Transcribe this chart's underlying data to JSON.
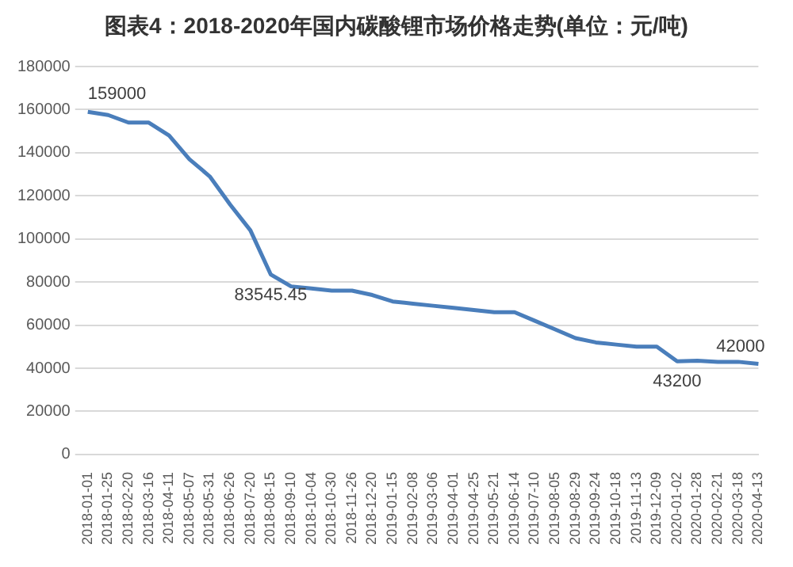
{
  "chart_data": {
    "type": "line",
    "title": "图表4：2018-2020年国内碳酸锂市场价格走势(单位：元/吨)",
    "categories": [
      "2018-01-01",
      "2018-01-25",
      "2018-02-20",
      "2018-03-16",
      "2018-04-11",
      "2018-05-07",
      "2018-05-31",
      "2018-06-26",
      "2018-07-20",
      "2018-08-15",
      "2018-09-10",
      "2018-10-04",
      "2018-10-30",
      "2018-11-26",
      "2018-12-20",
      "2019-01-15",
      "2019-02-08",
      "2019-03-06",
      "2019-04-01",
      "2019-04-25",
      "2019-05-21",
      "2019-06-14",
      "2019-07-10",
      "2019-08-05",
      "2019-08-29",
      "2019-09-24",
      "2019-10-18",
      "2019-11-13",
      "2019-12-09",
      "2020-01-02",
      "2020-01-28",
      "2020-02-21",
      "2020-03-18",
      "2020-04-13"
    ],
    "series": [
      {
        "color": "#4a7ebb",
        "values": [
          159000,
          157500,
          154000,
          154000,
          148000,
          137000,
          129000,
          116000,
          104000,
          83545.45,
          78000,
          77000,
          76000,
          76000,
          74000,
          71000,
          70000,
          69000,
          68000,
          67000,
          66000,
          66000,
          62000,
          58000,
          54000,
          52000,
          51000,
          50000,
          50000,
          43200,
          43500,
          43000,
          43000,
          42000
        ]
      }
    ],
    "ylim": [
      0,
      180000
    ],
    "yticks": [
      0,
      20000,
      40000,
      60000,
      80000,
      100000,
      120000,
      140000,
      160000,
      180000
    ],
    "grid": "y",
    "legend": false,
    "marker": "none",
    "line_style": "solid",
    "annotations": [
      {
        "text": "159000",
        "x": "2018-01-01",
        "y": 159000
      },
      {
        "text": "83545.45",
        "x": "2018-08-15",
        "y": 83545.45
      },
      {
        "text": "43200",
        "x": "2020-01-02",
        "y": 43200
      },
      {
        "text": "42000",
        "x": "2020-04-13",
        "y": 42000
      }
    ]
  }
}
